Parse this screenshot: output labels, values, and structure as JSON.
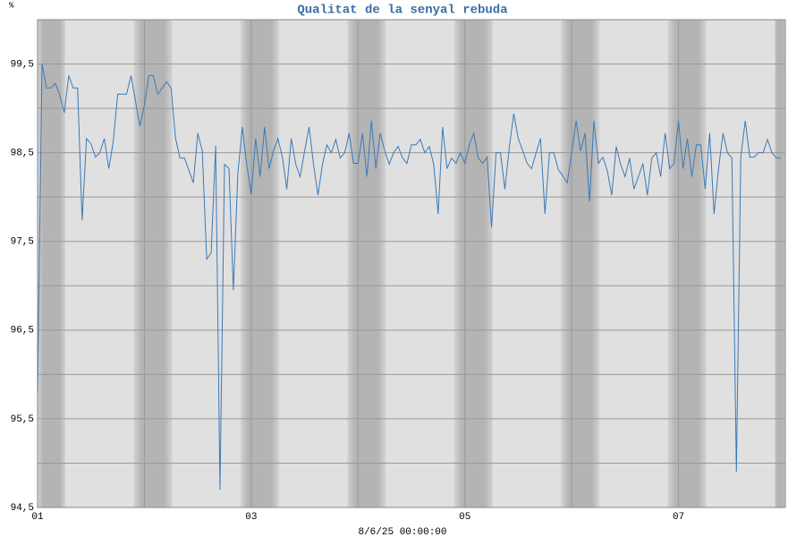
{
  "chart_data": {
    "type": "line",
    "title": "Qualitat de la senyal rebuda",
    "ylabel": "%",
    "xlabel": "8/6/25 00:00:00",
    "xlim": [
      1,
      8
    ],
    "xticks": [
      {
        "value": 1,
        "label": "01"
      },
      {
        "value": 3,
        "label": "03"
      },
      {
        "value": 5,
        "label": "05"
      },
      {
        "value": 7,
        "label": "07"
      }
    ],
    "xminorticks": [
      2,
      4,
      6
    ],
    "ylim": [
      94.5,
      100
    ],
    "yticks": [
      {
        "value": 94.5,
        "label": "94,5"
      },
      {
        "value": 95.5,
        "label": "95,5"
      },
      {
        "value": 96.5,
        "label": "96,5"
      },
      {
        "value": 97.5,
        "label": "97,5"
      },
      {
        "value": 98.5,
        "label": "98,5"
      },
      {
        "value": 99.5,
        "label": "99,5"
      }
    ],
    "yminorticks": [
      95,
      96,
      97,
      98,
      99,
      100
    ],
    "grid": true,
    "x": [
      1,
      1.042,
      1.083,
      1.125,
      1.167,
      1.208,
      1.25,
      1.292,
      1.333,
      1.375,
      1.417,
      1.458,
      1.5,
      1.542,
      1.583,
      1.625,
      1.667,
      1.708,
      1.75,
      1.792,
      1.833,
      1.875,
      1.917,
      1.958,
      2,
      2.042,
      2.083,
      2.125,
      2.167,
      2.208,
      2.25,
      2.292,
      2.333,
      2.375,
      2.417,
      2.458,
      2.5,
      2.542,
      2.583,
      2.625,
      2.667,
      2.708,
      2.75,
      2.792,
      2.833,
      2.875,
      2.917,
      2.958,
      3,
      3.042,
      3.083,
      3.125,
      3.167,
      3.208,
      3.25,
      3.292,
      3.333,
      3.375,
      3.417,
      3.458,
      3.5,
      3.542,
      3.583,
      3.625,
      3.667,
      3.708,
      3.75,
      3.792,
      3.833,
      3.875,
      3.917,
      3.958,
      4,
      4.042,
      4.083,
      4.125,
      4.167,
      4.208,
      4.25,
      4.292,
      4.333,
      4.375,
      4.417,
      4.458,
      4.5,
      4.542,
      4.583,
      4.625,
      4.667,
      4.708,
      4.75,
      4.792,
      4.833,
      4.875,
      4.917,
      4.958,
      5,
      5.042,
      5.083,
      5.125,
      5.167,
      5.208,
      5.25,
      5.292,
      5.333,
      5.375,
      5.417,
      5.458,
      5.5,
      5.542,
      5.583,
      5.625,
      5.667,
      5.708,
      5.75,
      5.792,
      5.833,
      5.875,
      5.917,
      5.958,
      6,
      6.042,
      6.083,
      6.125,
      6.167,
      6.208,
      6.25,
      6.292,
      6.333,
      6.375,
      6.417,
      6.458,
      6.5,
      6.542,
      6.583,
      6.625,
      6.667,
      6.708,
      6.75,
      6.792,
      6.833,
      6.875,
      6.917,
      6.958,
      7,
      7.042,
      7.083,
      7.125,
      7.167,
      7.208,
      7.25,
      7.292,
      7.333,
      7.375,
      7.417,
      7.458,
      7.5,
      7.542,
      7.583,
      7.625,
      7.667,
      7.708,
      7.75,
      7.792,
      7.833,
      7.875,
      7.917,
      7.958
    ],
    "series": [
      {
        "name": "Qualitat",
        "color": "#3a7ab8",
        "values": [
          95.8,
          99.5,
          99.23,
          99.23,
          99.28,
          99.15,
          98.95,
          99.37,
          99.23,
          99.23,
          97.74,
          98.66,
          98.6,
          98.45,
          98.5,
          98.66,
          98.32,
          98.62,
          99.16,
          99.16,
          99.16,
          99.37,
          99.08,
          98.8,
          99.04,
          99.37,
          99.37,
          99.16,
          99.23,
          99.3,
          99.23,
          98.66,
          98.44,
          98.44,
          98.3,
          98.16,
          98.72,
          98.52,
          97.3,
          97.37,
          98.58,
          94.7,
          98.37,
          98.32,
          96.95,
          98.27,
          98.79,
          98.37,
          98.03,
          98.66,
          98.23,
          98.79,
          98.32,
          98.52,
          98.66,
          98.45,
          98.09,
          98.66,
          98.37,
          98.23,
          98.52,
          98.79,
          98.37,
          98.02,
          98.37,
          98.59,
          98.5,
          98.65,
          98.44,
          98.5,
          98.72,
          98.38,
          98.38,
          98.72,
          98.23,
          98.86,
          98.32,
          98.72,
          98.52,
          98.37,
          98.5,
          98.57,
          98.44,
          98.38,
          98.59,
          98.59,
          98.65,
          98.5,
          98.57,
          98.37,
          97.81,
          98.79,
          98.32,
          98.44,
          98.38,
          98.5,
          98.38,
          98.59,
          98.72,
          98.44,
          98.38,
          98.45,
          97.66,
          98.5,
          98.5,
          98.09,
          98.57,
          98.94,
          98.66,
          98.52,
          98.38,
          98.32,
          98.5,
          98.66,
          97.81,
          98.5,
          98.5,
          98.31,
          98.24,
          98.16,
          98.5,
          98.86,
          98.52,
          98.72,
          97.95,
          98.86,
          98.38,
          98.45,
          98.3,
          98.02,
          98.57,
          98.37,
          98.23,
          98.44,
          98.09,
          98.23,
          98.38,
          98.02,
          98.44,
          98.5,
          98.23,
          98.72,
          98.32,
          98.38,
          98.86,
          98.32,
          98.66,
          98.23,
          98.59,
          98.59,
          98.09,
          98.72,
          97.81,
          98.32,
          98.72,
          98.5,
          98.44,
          94.9,
          98.45,
          98.86,
          98.45,
          98.45,
          98.5,
          98.5,
          98.65,
          98.5,
          98.44,
          98.44
        ]
      }
    ]
  }
}
